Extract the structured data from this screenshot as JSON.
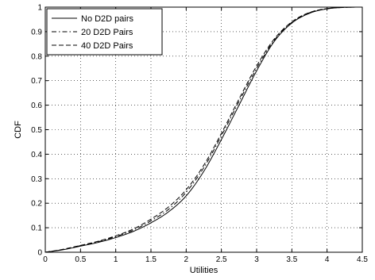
{
  "chart_data": {
    "type": "line",
    "title": "",
    "xlabel": "Utilities",
    "ylabel": "CDF",
    "xlim": [
      0,
      4.5
    ],
    "ylim": [
      0,
      1
    ],
    "xticks": [
      "0",
      "0.5",
      "1",
      "1.5",
      "2",
      "2.5",
      "3",
      "3.5",
      "4",
      "4.5"
    ],
    "yticks": [
      "0",
      "0.1",
      "0.2",
      "0.3",
      "0.4",
      "0.5",
      "0.6",
      "0.7",
      "0.8",
      "0.9",
      "1"
    ],
    "grid": true,
    "legend_position": "top-left",
    "series": [
      {
        "name": "No D2D pairs",
        "style": "solid",
        "color": "#000000",
        "x": [
          0,
          0.25,
          0.5,
          0.75,
          1.0,
          1.25,
          1.5,
          1.75,
          2.0,
          2.25,
          2.5,
          2.75,
          3.0,
          3.25,
          3.5,
          3.75,
          4.0,
          4.25,
          4.5
        ],
        "y": [
          0.0,
          0.01,
          0.025,
          0.04,
          0.06,
          0.085,
          0.12,
          0.165,
          0.23,
          0.33,
          0.46,
          0.6,
          0.74,
          0.86,
          0.935,
          0.975,
          0.993,
          0.999,
          1.0
        ]
      },
      {
        "name": "20 D2D Pairs",
        "style": "dashdot",
        "color": "#000000",
        "x": [
          0,
          0.25,
          0.5,
          0.75,
          1.0,
          1.25,
          1.5,
          1.75,
          2.0,
          2.25,
          2.5,
          2.75,
          3.0,
          3.25,
          3.5,
          3.75,
          4.0,
          4.25,
          4.5
        ],
        "y": [
          0.0,
          0.011,
          0.027,
          0.043,
          0.064,
          0.09,
          0.128,
          0.175,
          0.245,
          0.345,
          0.475,
          0.615,
          0.75,
          0.865,
          0.938,
          0.977,
          0.994,
          0.999,
          1.0
        ]
      },
      {
        "name": "40 D2D Pairs",
        "style": "dashed",
        "color": "#000000",
        "x": [
          0,
          0.25,
          0.5,
          0.75,
          1.0,
          1.25,
          1.5,
          1.75,
          2.0,
          2.25,
          2.5,
          2.75,
          3.0,
          3.25,
          3.5,
          3.75,
          4.0,
          4.25,
          4.5
        ],
        "y": [
          0.0,
          0.012,
          0.028,
          0.045,
          0.067,
          0.095,
          0.135,
          0.185,
          0.255,
          0.355,
          0.485,
          0.625,
          0.76,
          0.87,
          0.94,
          0.978,
          0.994,
          0.999,
          1.0
        ]
      }
    ]
  }
}
